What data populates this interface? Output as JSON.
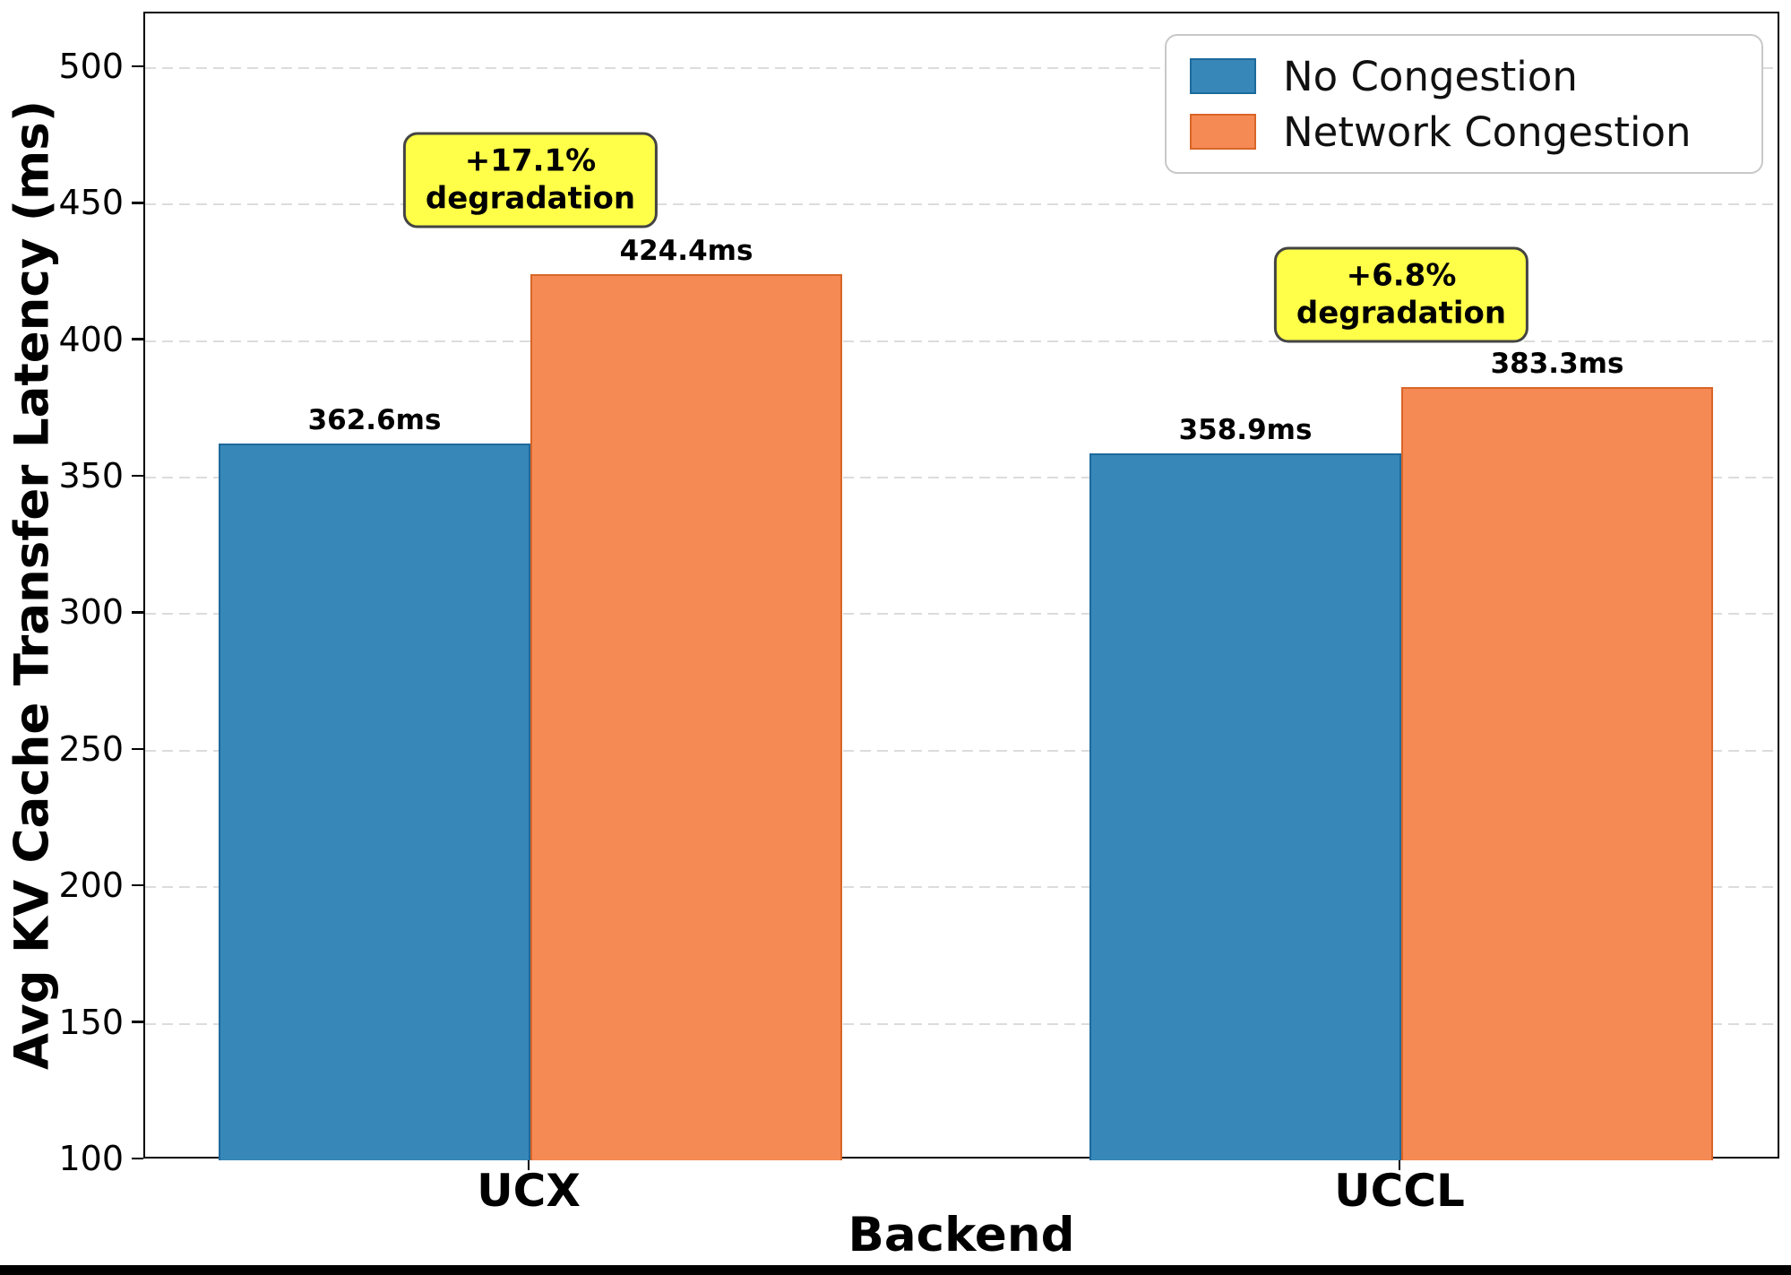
{
  "chart_data": {
    "type": "bar",
    "title": "",
    "xlabel": "Backend",
    "ylabel": "Avg KV Cache Transfer Latency (ms)",
    "categories": [
      "UCX",
      "UCCL"
    ],
    "series": [
      {
        "name": "No Congestion",
        "color": "#3787b8",
        "edge_color": "#1e6a9c",
        "values": [
          362.6,
          358.9
        ],
        "labels": [
          "362.6ms",
          "358.9ms"
        ]
      },
      {
        "name": "Network Congestion",
        "color": "#f58a55",
        "edge_color": "#d96527",
        "values": [
          424.4,
          383.3
        ],
        "labels": [
          "424.4ms",
          "383.3ms"
        ]
      }
    ],
    "annotations": [
      {
        "text": "+17.1%\ndegradation",
        "category_index": 0,
        "center_value": 459
      },
      {
        "text": "+6.8%\ndegradation",
        "category_index": 1,
        "center_value": 417
      }
    ],
    "ylim": [
      100,
      520
    ],
    "yticks": [
      100,
      150,
      200,
      250,
      300,
      350,
      400,
      450,
      500
    ],
    "grid": "horizontal-dashed",
    "gridline_color": "#dcdcdc",
    "legend_position": "upper right",
    "annotation_fill": "#ffff4a",
    "annotation_border": "#444444"
  }
}
